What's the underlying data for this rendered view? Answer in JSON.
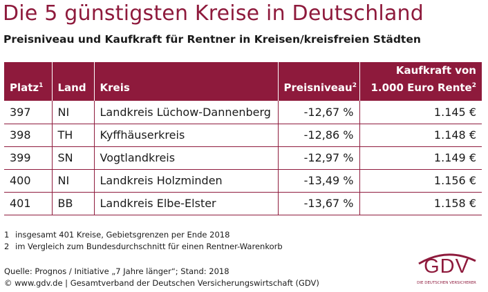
{
  "title": "Die 5 günstigsten Kreise in Deutschland",
  "subtitle": "Preisniveau und Kaufkraft für Rentner in Kreisen/kreisfreien Städten",
  "table": {
    "headers": {
      "platz": "Platz",
      "platz_sup": "1",
      "land": "Land",
      "kreis": "Kreis",
      "preisniveau": "Preisniveau",
      "preisniveau_sup": "2",
      "kaufkraft_line1": "Kaufkraft von",
      "kaufkraft_line2": "1.000 Euro Rente",
      "kaufkraft_sup": "2"
    },
    "rows": [
      {
        "platz": "397",
        "land": "NI",
        "kreis": "Landkreis Lüchow-Dannenberg",
        "preisniveau": "-12,67 %",
        "kaufkraft": "1.145 €"
      },
      {
        "platz": "398",
        "land": "TH",
        "kreis": "Kyffhäuserkreis",
        "preisniveau": "-12,86 %",
        "kaufkraft": "1.148 €"
      },
      {
        "platz": "399",
        "land": "SN",
        "kreis": "Vogtlandkreis",
        "preisniveau": "-12,97 %",
        "kaufkraft": "1.149 €"
      },
      {
        "platz": "400",
        "land": "NI",
        "kreis": "Landkreis Holzminden",
        "preisniveau": "-13,49 %",
        "kaufkraft": "1.156 €"
      },
      {
        "platz": "401",
        "land": "BB",
        "kreis": "Landkreis Elbe-Elster",
        "preisniveau": "-13,67 %",
        "kaufkraft": "1.158 €"
      }
    ]
  },
  "footnotes": [
    {
      "num": "1",
      "text": "insgesamt 401 Kreise, Gebietsgrenzen per Ende 2018"
    },
    {
      "num": "2",
      "text": "im Vergleich zum Bundesdurchschnitt für einen Rentner-Warenkorb"
    }
  ],
  "source": {
    "line1": "Quelle: Prognos / Initiative „7 Jahre länger“; Stand: 2018",
    "line2": "© www.gdv.de | Gesamtverband der Deutschen Versicherungswirtschaft (GDV)"
  },
  "logo": {
    "text": "GDV",
    "subtext": "DIE DEUTSCHEN VERSICHERER",
    "color": "#8e1a3c"
  },
  "colors": {
    "accent": "#8e1a3c",
    "header_text": "#ffffff"
  }
}
